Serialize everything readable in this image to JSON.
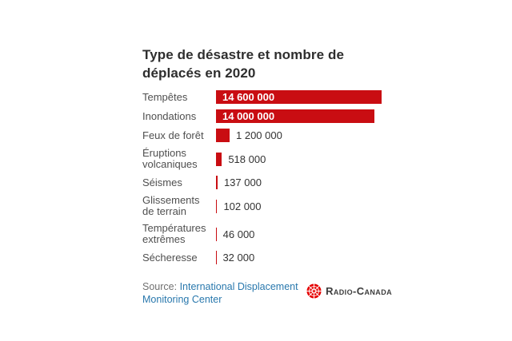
{
  "chart_data": {
    "type": "bar",
    "orientation": "horizontal",
    "title": "Type de désastre et nombre de déplacés en 2020",
    "categories": [
      "Tempêtes",
      "Inondations",
      "Feux de forêt",
      "Éruptions volcaniques",
      "Séismes",
      "Glissements de terrain",
      "Températures extrêmes",
      "Sécheresse"
    ],
    "values": [
      14600000,
      14000000,
      1200000,
      518000,
      137000,
      102000,
      46000,
      32000
    ],
    "value_labels": [
      "14 600 000",
      "14 000 000",
      "1 200 000",
      "518 000",
      "137 000",
      "102 000",
      "46 000",
      "32 000"
    ],
    "value_label_inside": [
      true,
      true,
      false,
      false,
      false,
      false,
      false,
      false
    ],
    "xlim": [
      0,
      14600000
    ],
    "grid": false,
    "legend": false,
    "bar_color": "#c90d12"
  },
  "source": {
    "prefix": "Source:",
    "link_text": "International Displacement Monitoring Center"
  },
  "logo": {
    "brand": "Radio-Canada",
    "text": "Radio-Canada"
  },
  "colors": {
    "bar": "#c90d12",
    "title": "#2e2e2e",
    "label": "#4f4f4f",
    "value": "#333333",
    "source": "#707070",
    "link": "#2978ad",
    "logo_red": "#e60000",
    "logo_text": "#3d3d3d"
  }
}
